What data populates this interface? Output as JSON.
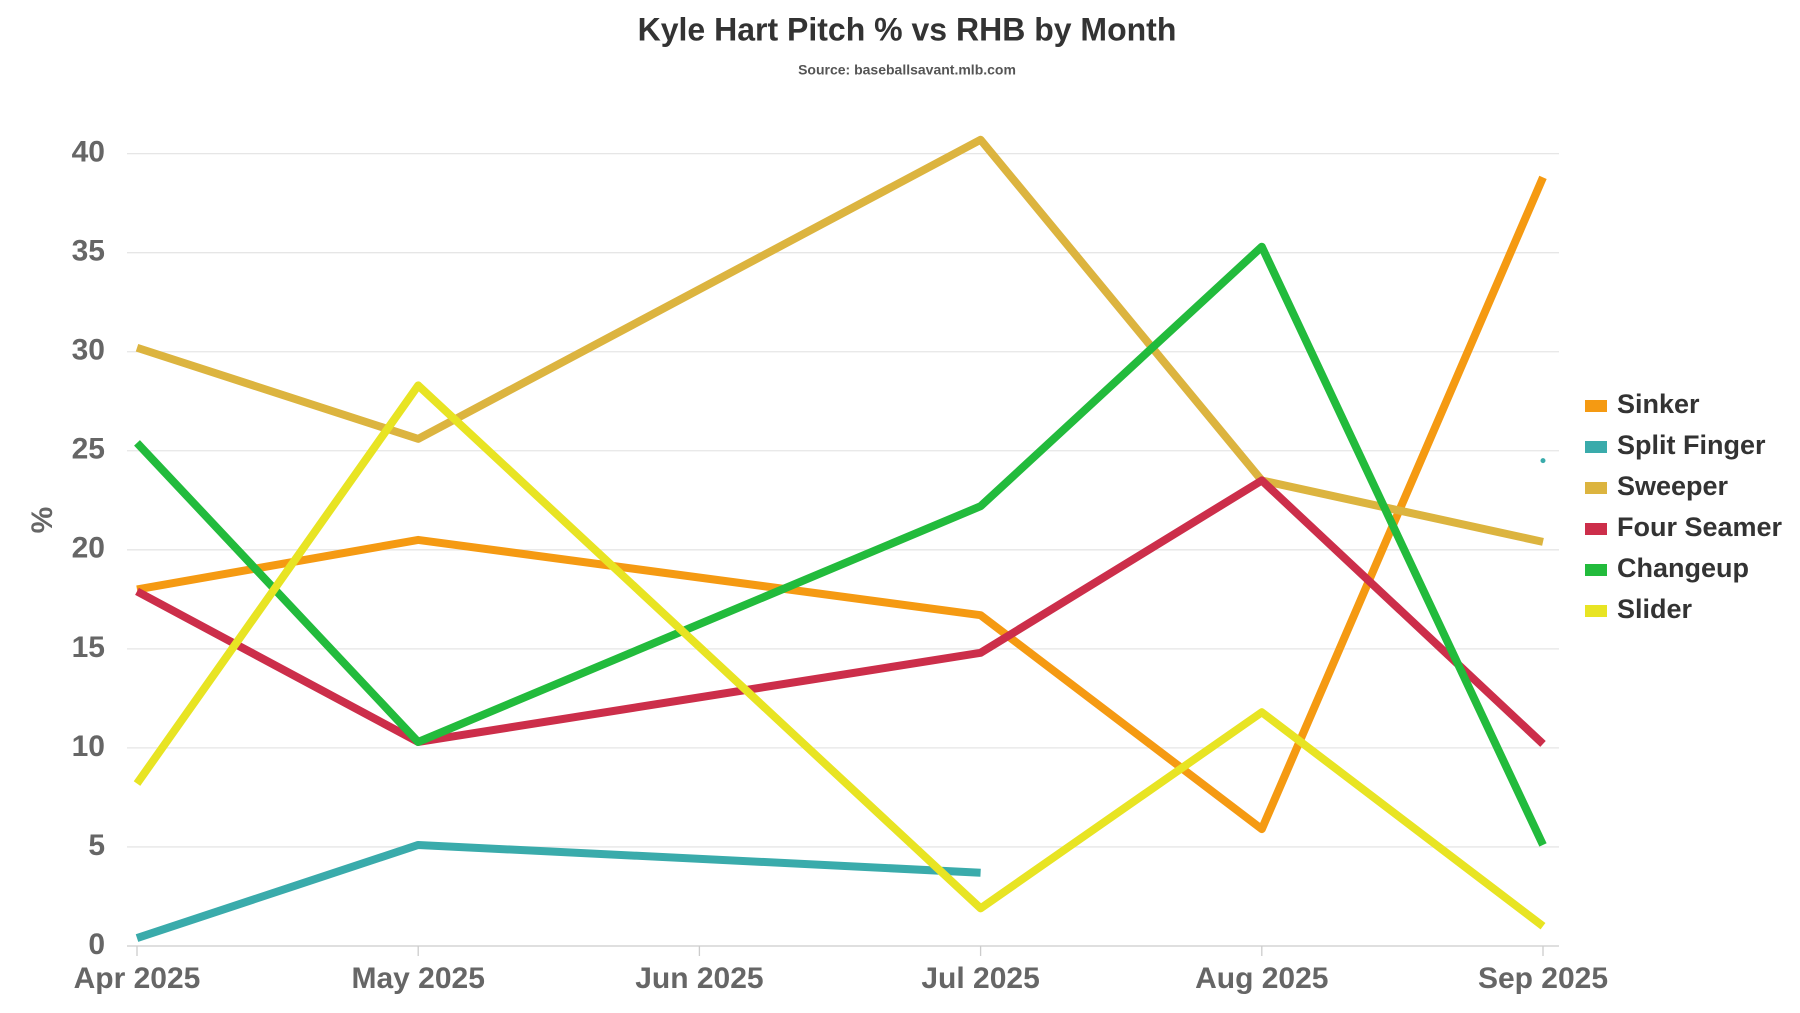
{
  "chart_data": {
    "type": "line",
    "title": "Kyle Hart Pitch % vs RHB by Month",
    "subtitle": "Source: baseballsavant.mlb.com",
    "y_label": "%",
    "x": [
      "2025-04",
      "2025-05",
      "2025-07",
      "2025-08",
      "2025-09"
    ],
    "xlim": [
      "2025-04",
      "2025-09"
    ],
    "xticks": [
      {
        "value": "2025-04",
        "label": "Apr 2025"
      },
      {
        "value": "2025-05",
        "label": "May 2025"
      },
      {
        "value": "2025-06",
        "label": "Jun 2025"
      },
      {
        "value": "2025-07",
        "label": "Jul 2025"
      },
      {
        "value": "2025-08",
        "label": "Aug 2025"
      },
      {
        "value": "2025-09",
        "label": "Sep 2025"
      }
    ],
    "ylim": [
      0,
      42
    ],
    "yticks": [
      0,
      5,
      10,
      15,
      20,
      25,
      30,
      35,
      40
    ],
    "grid": true,
    "legend": "right",
    "series": [
      {
        "name": "Sinker",
        "color": "#f59a12",
        "values": [
          18.0,
          20.5,
          16.7,
          5.9,
          38.8
        ]
      },
      {
        "name": "Split Finger",
        "color": "#3aabab",
        "values": [
          0.4,
          5.1,
          3.7,
          null,
          24.5
        ]
      },
      {
        "name": "Sweeper",
        "color": "#dcb43f",
        "values": [
          30.2,
          25.6,
          40.7,
          23.5,
          20.4
        ]
      },
      {
        "name": "Four Seamer",
        "color": "#cc2e4a",
        "values": [
          17.9,
          10.3,
          14.8,
          23.5,
          10.2
        ]
      },
      {
        "name": "Changeup",
        "color": "#22bb3c",
        "values": [
          25.4,
          10.3,
          22.2,
          35.3,
          5.1
        ]
      },
      {
        "name": "Slider",
        "color": "#e8e423",
        "values": [
          8.2,
          28.3,
          1.9,
          11.8,
          1.0
        ]
      }
    ]
  }
}
